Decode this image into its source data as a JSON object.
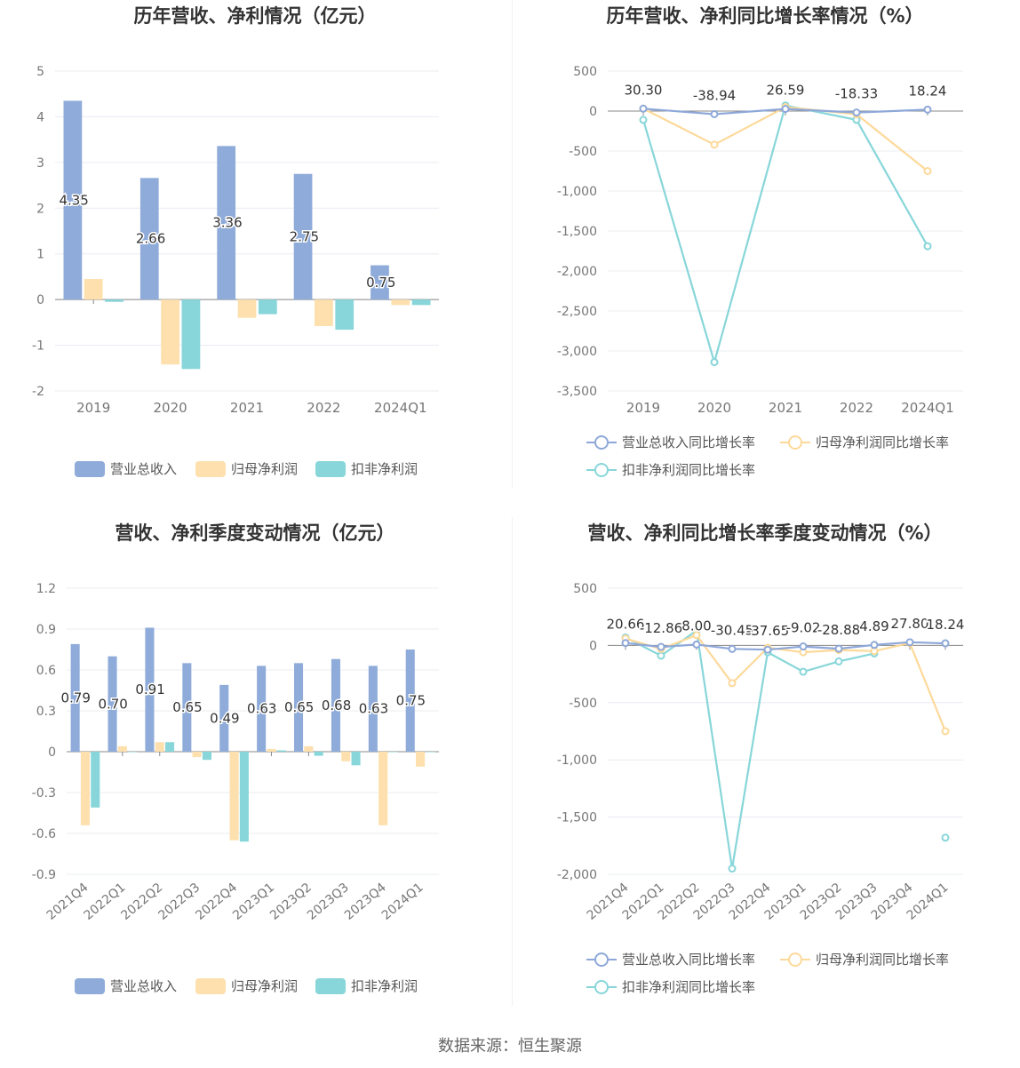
{
  "source": "数据来源：恒生聚源",
  "colors": {
    "revenue": "#8eabd9",
    "net_profit": "#fde0ad",
    "deducted_profit": "#88d6d9",
    "revenue_line": "#8ea8d9",
    "net_line": "#fdd99a",
    "deducted_line": "#88d6d9"
  },
  "chart_data": [
    {
      "id": "annual-values",
      "type": "bar",
      "title": "历年营收、净利情况（亿元）",
      "categories": [
        "2019",
        "2020",
        "2021",
        "2022",
        "2024Q1"
      ],
      "ylim": [
        -2,
        5
      ],
      "yticks": [
        5,
        4,
        3,
        2,
        1,
        0,
        -1,
        -2
      ],
      "ytick_labels": [
        "5",
        "4",
        "3",
        "2",
        "1",
        "0",
        "-1",
        "-2"
      ],
      "grid": true,
      "legend_position": "bottom",
      "series": [
        {
          "name": "营业总收入",
          "values": [
            4.35,
            2.66,
            3.36,
            2.75,
            0.75
          ],
          "labels": [
            "4.35",
            "2.66",
            "3.36",
            "2.75",
            "0.75"
          ]
        },
        {
          "name": "归母净利润",
          "values": [
            0.45,
            -1.42,
            -0.4,
            -0.58,
            -0.12
          ]
        },
        {
          "name": "扣非净利润",
          "values": [
            -0.05,
            -1.52,
            -0.32,
            -0.66,
            -0.12
          ]
        }
      ]
    },
    {
      "id": "annual-growth",
      "type": "line",
      "title": "历年营收、净利同比增长率情况（%）",
      "categories": [
        "2019",
        "2020",
        "2021",
        "2022",
        "2024Q1"
      ],
      "ylim": [
        -3500,
        500
      ],
      "yticks": [
        500,
        0,
        -500,
        -1000,
        -1500,
        -2000,
        -2500,
        -3000,
        -3500
      ],
      "ytick_labels": [
        "500",
        "0",
        "-500",
        "-1,000",
        "-1,500",
        "-2,000",
        "-2,500",
        "-3,000",
        "-3,500"
      ],
      "grid": true,
      "legend_position": "bottom",
      "series": [
        {
          "name": "营业总收入同比增长率",
          "values": [
            30.3,
            -38.94,
            26.59,
            -18.33,
            18.24
          ],
          "labels": [
            "30.30",
            "-38.94",
            "26.59",
            "-18.33",
            "18.24"
          ]
        },
        {
          "name": "归母净利润同比增长率",
          "values": [
            30,
            -420,
            50,
            -40,
            -750
          ]
        },
        {
          "name": "扣非净利润同比增长率",
          "values": [
            -110,
            -3140,
            70,
            -110,
            -1690
          ]
        }
      ]
    },
    {
      "id": "quarterly-values",
      "type": "bar",
      "title": "营收、净利季度变动情况（亿元）",
      "categories": [
        "2021Q4",
        "2022Q1",
        "2022Q2",
        "2022Q3",
        "2022Q4",
        "2023Q1",
        "2023Q2",
        "2023Q3",
        "2023Q4",
        "2024Q1"
      ],
      "ylim": [
        -0.9,
        1.2
      ],
      "yticks": [
        1.2,
        0.9,
        0.6,
        0.3,
        0,
        -0.3,
        -0.6,
        -0.9
      ],
      "ytick_labels": [
        "1.2",
        "0.9",
        "0.6",
        "0.3",
        "0",
        "-0.3",
        "-0.6",
        "-0.9"
      ],
      "grid": true,
      "legend_position": "bottom",
      "series": [
        {
          "name": "营业总收入",
          "values": [
            0.79,
            0.7,
            0.91,
            0.65,
            0.49,
            0.63,
            0.65,
            0.68,
            0.63,
            0.75
          ],
          "labels": [
            "0.79",
            "0.70",
            "0.91",
            "0.65",
            "0.49",
            "0.63",
            "0.65",
            "0.68",
            "0.63",
            "0.75"
          ]
        },
        {
          "name": "归母净利润",
          "values": [
            -0.54,
            0.04,
            0.07,
            -0.04,
            -0.65,
            0.02,
            0.04,
            -0.07,
            -0.54,
            -0.11
          ]
        },
        {
          "name": "扣非净利润",
          "values": [
            -0.41,
            0.0,
            0.07,
            -0.06,
            -0.66,
            0.01,
            -0.03,
            -0.1,
            0.0,
            0.0
          ]
        }
      ]
    },
    {
      "id": "quarterly-growth",
      "type": "line",
      "title": "营收、净利同比增长率季度变动情况（%）",
      "categories": [
        "2021Q4",
        "2022Q1",
        "2022Q2",
        "2022Q3",
        "2022Q4",
        "2023Q1",
        "2023Q2",
        "2023Q3",
        "2023Q4",
        "2024Q1"
      ],
      "ylim": [
        -2000,
        500
      ],
      "yticks": [
        500,
        0,
        -500,
        -1000,
        -1500,
        -2000
      ],
      "ytick_labels": [
        "500",
        "0",
        "-500",
        "-1,000",
        "-1,500",
        "-2,000"
      ],
      "grid": true,
      "legend_position": "bottom",
      "series": [
        {
          "name": "营业总收入同比增长率",
          "values": [
            20.66,
            -12.86,
            8.0,
            -30.45,
            -37.65,
            -9.02,
            -28.88,
            4.89,
            27.8,
            18.24
          ],
          "labels": [
            "20.66",
            "-12.86",
            "8.00",
            "-30.45",
            "-37.65",
            "-9.02",
            "-28.88",
            "4.89",
            "27.80",
            "18.24"
          ]
        },
        {
          "name": "归母净利润同比增长率",
          "values": [
            60,
            -30,
            90,
            -330,
            -20,
            -60,
            -40,
            -50,
            20,
            -750
          ]
        },
        {
          "name": "扣非净利润同比增长率",
          "values": [
            70,
            -90,
            130,
            -1950,
            -60,
            -230,
            -140,
            -70,
            null,
            -1680
          ]
        }
      ]
    }
  ]
}
